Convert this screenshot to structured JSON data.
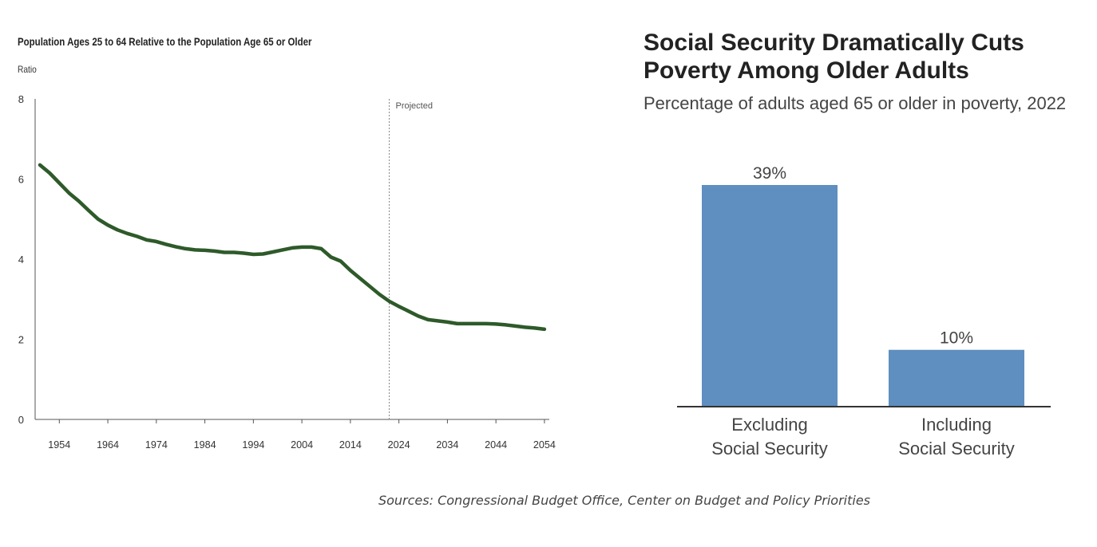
{
  "left_chart": {
    "title": "Population Ages 25 to 64 Relative to the Population Age 65 or Older",
    "ylabel": "Ratio",
    "projected_label": "Projected",
    "line_color": "#2e5a2a"
  },
  "right_chart": {
    "title": "Social Security Dramatically Cuts Poverty Among Older Adults",
    "subtitle": "Percentage of adults aged 65 or older in poverty, 2022",
    "bar_color": "#5f8ec0"
  },
  "sources": "Sources: Congressional Budget Office, Center on Budget and Policy Priorities",
  "chart_data": [
    {
      "type": "line",
      "title": "Population Ages 25 to 64 Relative to the Population Age 65 or Older",
      "ylabel": "Ratio",
      "xlim": [
        1950,
        2055
      ],
      "ylim": [
        0,
        8
      ],
      "yticks": [
        0,
        2,
        4,
        6,
        8
      ],
      "xticks": [
        1954,
        1964,
        1974,
        1984,
        1994,
        2004,
        2014,
        2024,
        2034,
        2044,
        2054
      ],
      "projection_start": 2022,
      "grid": false,
      "x": [
        1950,
        1952,
        1954,
        1956,
        1958,
        1960,
        1962,
        1964,
        1966,
        1968,
        1970,
        1972,
        1974,
        1976,
        1978,
        1980,
        1982,
        1984,
        1986,
        1988,
        1990,
        1992,
        1994,
        1996,
        1998,
        2000,
        2002,
        2004,
        2006,
        2008,
        2010,
        2012,
        2014,
        2016,
        2018,
        2020,
        2022,
        2024,
        2026,
        2028,
        2030,
        2032,
        2034,
        2036,
        2038,
        2040,
        2042,
        2044,
        2046,
        2048,
        2050,
        2052,
        2054
      ],
      "y": [
        6.35,
        6.15,
        5.9,
        5.65,
        5.45,
        5.22,
        5.0,
        4.85,
        4.73,
        4.64,
        4.57,
        4.48,
        4.44,
        4.37,
        4.31,
        4.26,
        4.23,
        4.22,
        4.2,
        4.17,
        4.17,
        4.15,
        4.12,
        4.13,
        4.18,
        4.23,
        4.28,
        4.3,
        4.3,
        4.26,
        4.05,
        3.95,
        3.72,
        3.52,
        3.32,
        3.12,
        2.95,
        2.82,
        2.7,
        2.58,
        2.49,
        2.46,
        2.43,
        2.39,
        2.39,
        2.39,
        2.39,
        2.38,
        2.36,
        2.33,
        2.3,
        2.28,
        2.25
      ]
    },
    {
      "type": "bar",
      "title": "Social Security Dramatically Cuts Poverty Among Older Adults",
      "subtitle": "Percentage of adults aged 65 or older in poverty, 2022",
      "categories": [
        "Excluding Social Security",
        "Including Social Security"
      ],
      "values": [
        39,
        10
      ],
      "value_labels": [
        "39%",
        "10%"
      ]
    }
  ]
}
